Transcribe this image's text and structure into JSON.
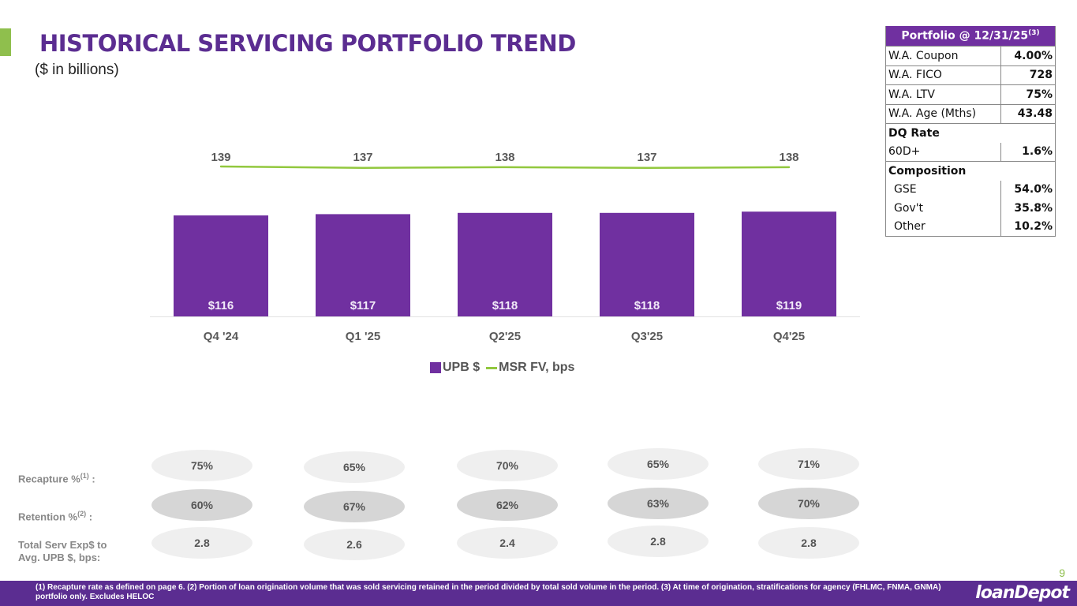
{
  "header": {
    "title": "HISTORICAL SERVICING PORTFOLIO TREND",
    "subtitle": "($ in billions)"
  },
  "chart_data": {
    "type": "bar",
    "categories": [
      "Q4 '24",
      "Q1 '25",
      "Q2'25",
      "Q3'25",
      "Q4'25"
    ],
    "series": [
      {
        "name": "UPB $",
        "kind": "bar",
        "color": "#7030a0",
        "values": [
          116,
          117,
          118,
          118,
          119
        ],
        "labels": [
          "$116",
          "$117",
          "$118",
          "$118",
          "$119"
        ]
      },
      {
        "name": "MSR FV, bps",
        "kind": "line",
        "color": "#92c83e",
        "values": [
          139,
          137,
          138,
          137,
          138
        ],
        "labels": [
          "139",
          "137",
          "138",
          "137",
          "138"
        ]
      }
    ],
    "title": "",
    "xlabel": "",
    "ylabel": "",
    "legend": "bottom-center",
    "grid": false
  },
  "legend": {
    "items": [
      "UPB $",
      "MSR FV, bps"
    ]
  },
  "portfolio_table": {
    "title": "Portfolio @ 12/31/25",
    "title_sup": "(3)",
    "rows": [
      {
        "label": "W.A. Coupon",
        "value": "4.00%"
      },
      {
        "label": "W.A. FICO",
        "value": "728"
      },
      {
        "label": "W.A. LTV",
        "value": "75%"
      },
      {
        "label": "W.A. Age (Mths)",
        "value": "43.48"
      }
    ],
    "dq": {
      "label": "DQ Rate",
      "rows": [
        {
          "label": "60D+",
          "value": "1.6%"
        }
      ]
    },
    "composition": {
      "label": "Composition",
      "rows": [
        {
          "label": "GSE",
          "value": "54.0%"
        },
        {
          "label": "Gov't",
          "value": "35.8%"
        },
        {
          "label": "Other",
          "value": "10.2%"
        }
      ]
    }
  },
  "metrics": {
    "recapture": {
      "label": "Recapture %",
      "sup": "(1)",
      "suffix": " :",
      "values": [
        "75%",
        "65%",
        "70%",
        "65%",
        "71%"
      ]
    },
    "retention": {
      "label": "Retention %",
      "sup": "(2)",
      "suffix": " :",
      "values": [
        "60%",
        "67%",
        "62%",
        "63%",
        "70%"
      ]
    },
    "serv_exp": {
      "label_line1": "Total Serv Exp$ to",
      "label_line2": "Avg. UPB $, bps:",
      "values": [
        "2.8",
        "2.6",
        "2.4",
        "2.8",
        "2.8"
      ]
    }
  },
  "footer": {
    "page_number": "9",
    "footnote": "(1) Recapture rate as defined on page 6. (2) Portion of loan origination volume that was sold servicing retained in the period divided by total sold volume in the period. (3) At time of origination, stratifications for agency (FHLMC, FNMA, GNMA) portfolio only. Excludes HELOC",
    "logo_left": "loan",
    "logo_right": "epot",
    "logo_mark": "D"
  },
  "colors": {
    "brand_purple": "#5b2d91",
    "bar_purple": "#7030a0",
    "accent_green": "#8fbf4d"
  }
}
